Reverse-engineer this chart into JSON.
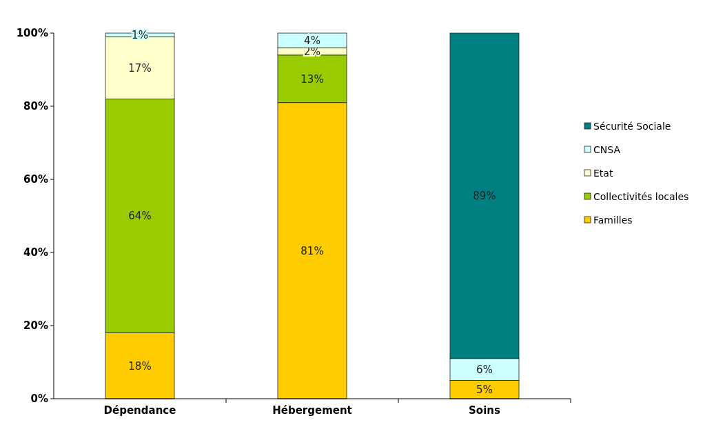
{
  "chart_data": {
    "type": "bar",
    "stacked": true,
    "categories": [
      "Dépendance",
      "Hébergement",
      "Soins"
    ],
    "series": [
      {
        "name": "Familles",
        "color": "#ffcc00",
        "values": [
          18,
          81,
          5
        ],
        "value_labels": [
          "18%",
          "81%",
          "5%"
        ]
      },
      {
        "name": "Collectivités locales",
        "color": "#99cc00",
        "values": [
          64,
          13,
          0
        ],
        "value_labels": [
          "64%",
          "13%",
          null
        ]
      },
      {
        "name": "Etat",
        "color": "#ffffcc",
        "values": [
          17,
          2,
          0
        ],
        "value_labels": [
          "17%",
          "2%",
          null
        ]
      },
      {
        "name": "CNSA",
        "color": "#ccffff",
        "values": [
          1,
          4,
          6
        ],
        "value_labels": [
          "1%",
          "4%",
          "6%"
        ]
      },
      {
        "name": "Sécurité Sociale",
        "color": "#008080",
        "values": [
          0,
          0,
          89
        ],
        "value_labels": [
          null,
          null,
          "89%"
        ]
      }
    ],
    "ylim": [
      0,
      100
    ],
    "yticks": [
      {
        "value": 0,
        "label": "0%"
      },
      {
        "value": 20,
        "label": "20%"
      },
      {
        "value": 40,
        "label": "40%"
      },
      {
        "value": 60,
        "label": "60%"
      },
      {
        "value": 80,
        "label": "80%"
      },
      {
        "value": 100,
        "label": "100%"
      }
    ],
    "grid": false,
    "legend": "right"
  }
}
